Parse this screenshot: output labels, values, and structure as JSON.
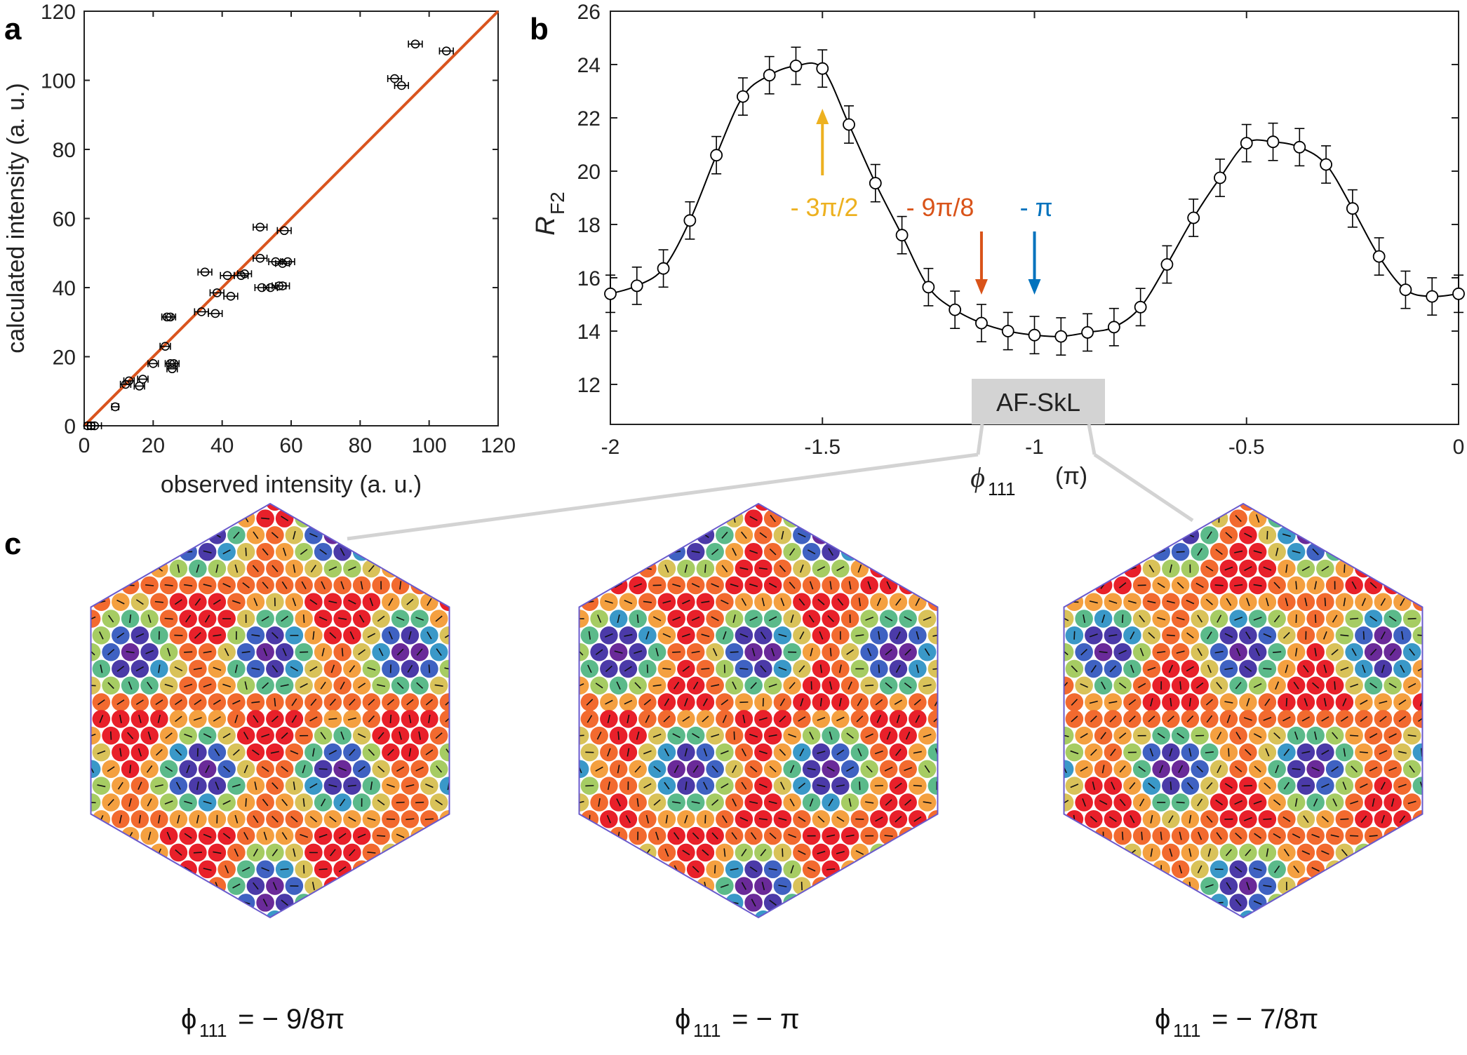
{
  "panel_labels": {
    "a": "a",
    "b": "b",
    "c": "c"
  },
  "colors": {
    "fit_line": "#d9541e",
    "arrow_orange": "#edb120",
    "arrow_red": "#d95319",
    "arrow_blue": "#0072bd",
    "hex_border": "#6a5acd",
    "box_fill": "#d3d3d3"
  },
  "chart_data": [
    {
      "id": "a",
      "type": "scatter",
      "title": "",
      "xlabel": "observed intensity (a. u.)",
      "ylabel": "calculated intensity (a. u.)",
      "xlim": [
        0,
        120
      ],
      "ylim": [
        0,
        120
      ],
      "xticks": [
        0,
        20,
        40,
        60,
        80,
        100,
        120
      ],
      "yticks": [
        0,
        20,
        40,
        60,
        80,
        100,
        120
      ],
      "fit_line": {
        "x": [
          0,
          120
        ],
        "y": [
          0,
          120
        ]
      },
      "points": [
        {
          "x": 1,
          "y": 0,
          "xerr": 1
        },
        {
          "x": 2,
          "y": 0,
          "xerr": 1
        },
        {
          "x": 3,
          "y": 0,
          "xerr": 2
        },
        {
          "x": 9,
          "y": 5.5,
          "xerr": 1
        },
        {
          "x": 12,
          "y": 12,
          "xerr": 1.5
        },
        {
          "x": 13,
          "y": 13,
          "xerr": 1.5
        },
        {
          "x": 16,
          "y": 11.5,
          "xerr": 1.5
        },
        {
          "x": 17,
          "y": 13.5,
          "xerr": 1.5
        },
        {
          "x": 20,
          "y": 18,
          "xerr": 1.5
        },
        {
          "x": 23.5,
          "y": 23,
          "xerr": 1.5
        },
        {
          "x": 24,
          "y": 31.5,
          "xerr": 1.5
        },
        {
          "x": 25,
          "y": 31.5,
          "xerr": 1.5
        },
        {
          "x": 25,
          "y": 18,
          "xerr": 1.5
        },
        {
          "x": 25.5,
          "y": 16.5,
          "xerr": 1.5
        },
        {
          "x": 26,
          "y": 18,
          "xerr": 1.5
        },
        {
          "x": 34,
          "y": 33,
          "xerr": 2
        },
        {
          "x": 35,
          "y": 44.5,
          "xerr": 2
        },
        {
          "x": 38,
          "y": 32.5,
          "xerr": 2
        },
        {
          "x": 38.5,
          "y": 38.5,
          "xerr": 2
        },
        {
          "x": 41.5,
          "y": 43.5,
          "xerr": 2
        },
        {
          "x": 42.5,
          "y": 37.5,
          "xerr": 2
        },
        {
          "x": 45.5,
          "y": 43.5,
          "xerr": 2
        },
        {
          "x": 46.5,
          "y": 44,
          "xerr": 2
        },
        {
          "x": 51,
          "y": 57.5,
          "xerr": 2
        },
        {
          "x": 51,
          "y": 48.5,
          "xerr": 2
        },
        {
          "x": 51.5,
          "y": 40,
          "xerr": 2
        },
        {
          "x": 54,
          "y": 40,
          "xerr": 2
        },
        {
          "x": 55.5,
          "y": 47.5,
          "xerr": 2
        },
        {
          "x": 56.5,
          "y": 40.5,
          "xerr": 2
        },
        {
          "x": 57.5,
          "y": 47,
          "xerr": 2
        },
        {
          "x": 57.5,
          "y": 40.5,
          "xerr": 2
        },
        {
          "x": 58,
          "y": 56.5,
          "xerr": 2
        },
        {
          "x": 59,
          "y": 47.5,
          "xerr": 2
        },
        {
          "x": 90,
          "y": 100.5,
          "xerr": 2
        },
        {
          "x": 92,
          "y": 98.5,
          "xerr": 2
        },
        {
          "x": 96,
          "y": 110.5,
          "xerr": 2
        },
        {
          "x": 105,
          "y": 108.5,
          "xerr": 2
        }
      ]
    },
    {
      "id": "b",
      "type": "line",
      "title": "",
      "xlabel": "ϕ",
      "xlabel_sub": "111",
      "xlabel_unit": "(π)",
      "ylabel": "R",
      "ylabel_sub": "F2",
      "xlim": [
        -2,
        0
      ],
      "ylim": [
        10.5,
        26
      ],
      "xticks": [
        -2,
        -1.5,
        -1,
        -0.5,
        0
      ],
      "xtick_labels": [
        "-2",
        "-1.5",
        "-1",
        "-0.5",
        "0"
      ],
      "yticks": [
        12,
        14,
        16,
        18,
        20,
        22,
        24,
        26
      ],
      "x": [
        -2,
        -1.9375,
        -1.875,
        -1.8125,
        -1.75,
        -1.6875,
        -1.625,
        -1.5625,
        -1.5,
        -1.4375,
        -1.375,
        -1.3125,
        -1.25,
        -1.1875,
        -1.125,
        -1.0625,
        -1,
        -0.9375,
        -0.875,
        -0.8125,
        -0.75,
        -0.6875,
        -0.625,
        -0.5625,
        -0.5,
        -0.4375,
        -0.375,
        -0.3125,
        -0.25,
        -0.1875,
        -0.125,
        -0.0625,
        0
      ],
      "values": [
        15.4,
        15.7,
        16.35,
        18.15,
        20.6,
        22.8,
        23.6,
        23.95,
        23.85,
        21.75,
        19.55,
        17.6,
        15.65,
        14.8,
        14.3,
        14.0,
        13.85,
        13.8,
        13.95,
        14.15,
        14.9,
        16.5,
        18.25,
        19.75,
        21.05,
        21.1,
        20.9,
        20.25,
        18.6,
        16.8,
        15.55,
        15.3,
        15.4
      ],
      "error": 0.7,
      "annotations": [
        {
          "label": "- 3π/2",
          "x": -1.5,
          "color": "arrow_orange"
        },
        {
          "label": "- 9π/8",
          "x": -1.125,
          "color": "arrow_red"
        },
        {
          "label": "- π",
          "x": -1.0,
          "color": "arrow_blue"
        }
      ],
      "box_label": "AF-SkL"
    }
  ],
  "lattices": [
    {
      "caption_sym": "ϕ",
      "caption_sub": "111",
      "caption_rest": " = − 9/8π"
    },
    {
      "caption_sym": "ϕ",
      "caption_sub": "111",
      "caption_rest": " = − π"
    },
    {
      "caption_sym": "ϕ",
      "caption_sub": "111",
      "caption_rest": " = − 7/8π"
    }
  ]
}
